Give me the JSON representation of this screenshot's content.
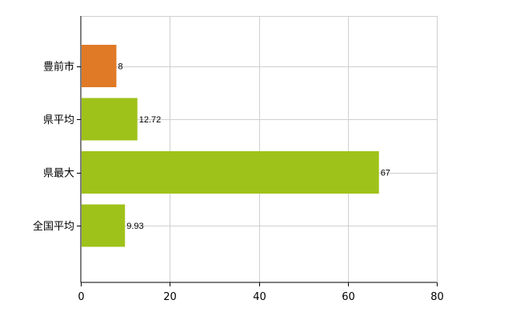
{
  "chart_data": {
    "type": "bar",
    "orientation": "horizontal",
    "categories": [
      "豊前市",
      "県平均",
      "県最大",
      "全国平均"
    ],
    "values": [
      8,
      12.72,
      67,
      9.93
    ],
    "value_labels": [
      "8",
      "12.72",
      "67",
      "9.93"
    ],
    "colors": [
      "#e07a26",
      "#9fc21a",
      "#9fc21a",
      "#9fc21a"
    ],
    "xlim": [
      0,
      80
    ],
    "xticks": [
      0,
      20,
      40,
      60,
      80
    ],
    "xtick_labels": [
      "0",
      "20",
      "40",
      "60",
      "80"
    ],
    "grid": true,
    "legend": "none"
  }
}
